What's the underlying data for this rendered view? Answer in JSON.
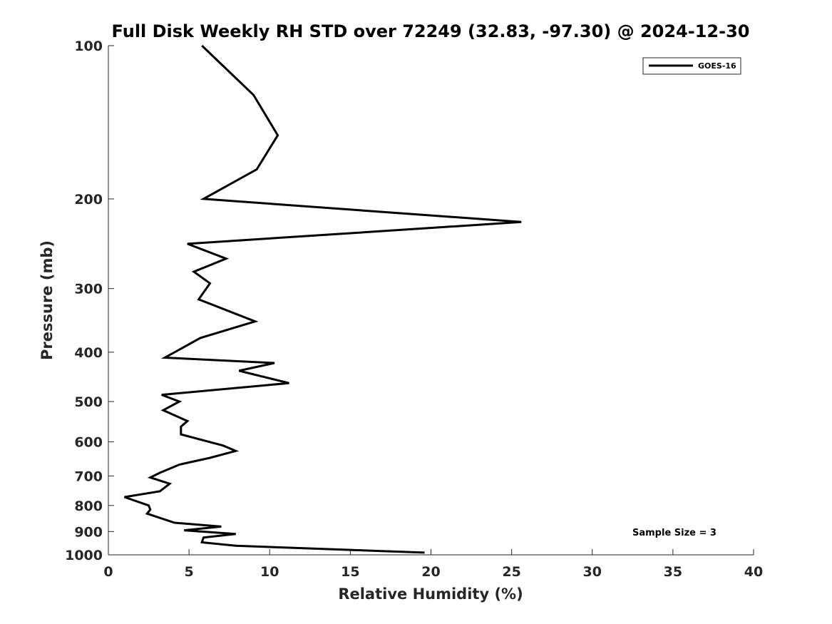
{
  "chart_data": {
    "type": "line",
    "title": "Full Disk Weekly RH STD over 72249 (32.83, -97.30) @ 2024-12-30",
    "xlabel": "Relative Humidity (%)",
    "ylabel": "Pressure (mb)",
    "xlim": [
      0,
      40
    ],
    "ylim": [
      100,
      1000
    ],
    "y_scale": "log",
    "y_reversed": true,
    "x_ticks": [
      0,
      5,
      10,
      15,
      20,
      25,
      30,
      35,
      40
    ],
    "y_ticks": [
      100,
      200,
      300,
      400,
      500,
      600,
      700,
      800,
      900,
      1000
    ],
    "grid": false,
    "legend_position": "top-right",
    "series": [
      {
        "name": "GOES-16",
        "color": "#000000",
        "x": [
          5.8,
          9.0,
          10.5,
          9.2,
          5.9,
          25.6,
          4.9,
          7.3,
          5.3,
          6.3,
          5.6,
          9.1,
          5.7,
          3.5,
          10.3,
          8.1,
          11.2,
          3.3,
          4.4,
          3.4,
          4.9,
          4.5,
          4.5,
          7.1,
          7.9,
          6.3,
          4.4,
          3.2,
          2.6,
          3.8,
          3.2,
          1.0,
          2.5,
          2.6,
          2.4,
          4.1,
          7.0,
          4.7,
          7.9,
          5.9,
          5.8,
          7.9,
          19.6
        ],
        "y": [
          100,
          125,
          150,
          175,
          200,
          222,
          245,
          262,
          278,
          293,
          315,
          348,
          375,
          410,
          420,
          435,
          460,
          485,
          500,
          520,
          546,
          560,
          580,
          610,
          625,
          645,
          665,
          690,
          705,
          725,
          750,
          770,
          800,
          815,
          830,
          865,
          880,
          895,
          910,
          925,
          945,
          960,
          990
        ]
      }
    ],
    "annotation": "Sample Size = 3"
  }
}
